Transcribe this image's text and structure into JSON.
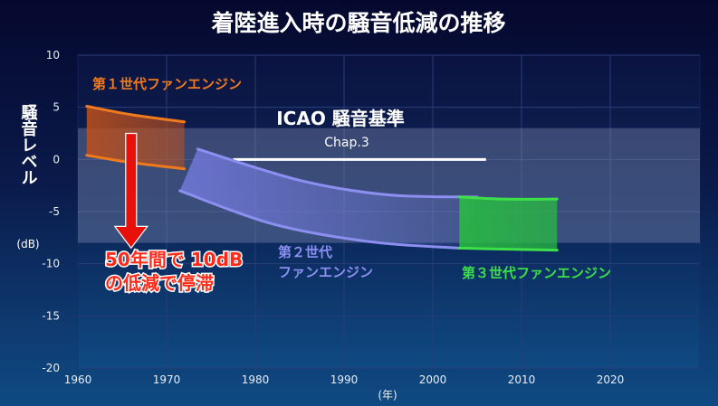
{
  "title": "着陸進入時の騒音低減の推移",
  "chart_data": {
    "type": "area",
    "ylabel": "騒音レベル",
    "yunit": "(dB)",
    "xunit": "(年)",
    "xlim": [
      1960,
      2030
    ],
    "ylim": [
      -20,
      10
    ],
    "xticks": [
      1960,
      1970,
      1980,
      1990,
      2000,
      2010,
      2020
    ],
    "yticks": [
      10,
      5,
      0,
      -5,
      -10,
      -15,
      -20
    ],
    "icao_band": {
      "label": "ICAO 騒音基準",
      "sublabel": "Chap.3",
      "y_top": 3,
      "y_bottom": -8,
      "line_y": 0,
      "line_x": [
        1977.5,
        2006
      ]
    },
    "series": [
      {
        "name": "第１世代ファンエンジン",
        "color": "#f07a1e",
        "upper": {
          "x": [
            1961,
            1966,
            1972
          ],
          "y": [
            5.1,
            4.3,
            3.6
          ]
        },
        "lower": {
          "x": [
            1961,
            1966,
            1972
          ],
          "y": [
            0.4,
            -0.3,
            -0.9
          ]
        }
      },
      {
        "name": "第２世代ファンエンジン",
        "color": "#8c8ff0",
        "upper": {
          "x": [
            1973.5,
            1985,
            1995,
            2005
          ],
          "y": [
            1.0,
            -2.0,
            -3.4,
            -3.6
          ]
        },
        "lower": {
          "x": [
            1971.5,
            1982,
            1993,
            2003
          ],
          "y": [
            -3.0,
            -6.2,
            -7.9,
            -8.5
          ]
        }
      },
      {
        "name": "第３世代ファンエンジン",
        "color": "#3ee04a",
        "upper": {
          "x": [
            2003,
            2008,
            2014
          ],
          "y": [
            -3.6,
            -3.8,
            -3.8
          ]
        },
        "lower": {
          "x": [
            2003,
            2008,
            2014
          ],
          "y": [
            -8.5,
            -8.6,
            -8.7
          ]
        }
      }
    ],
    "annotation": {
      "lines": [
        "50年間で 10dB",
        "の低減で停滞"
      ],
      "arrow_x": 1966,
      "arrow_from": 2.5,
      "arrow_to": -8.5
    }
  },
  "labels": {
    "gen1": "第１世代ファンエンジン",
    "gen2_line1": "第２世代",
    "gen2_line2": "ファンエンジン",
    "gen3": "第３世代ファンエンジン"
  }
}
